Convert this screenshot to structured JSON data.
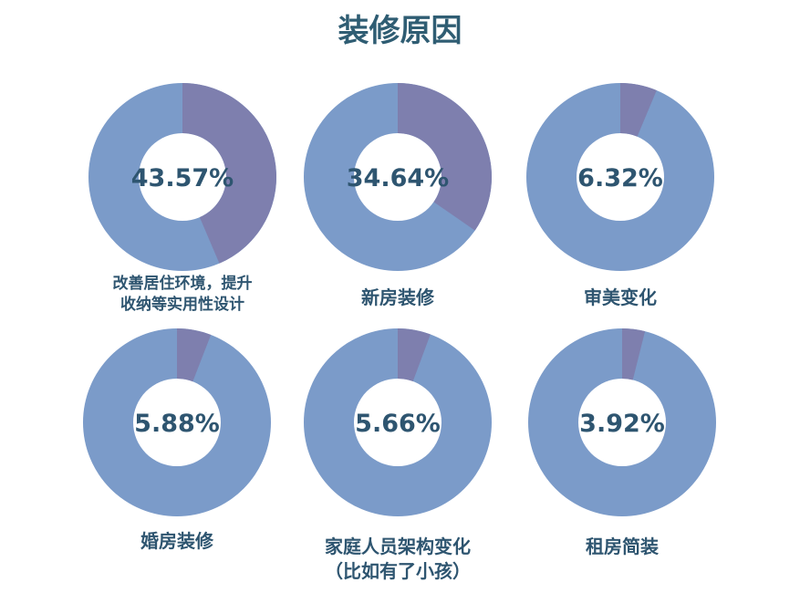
{
  "title": "装修原因",
  "chart_data": [
    {
      "type": "donut",
      "categories": [
        "改善居住环境，提升\n收纳等实用性设计"
      ],
      "values": [
        43.57
      ],
      "value_labels": [
        "43.57%"
      ],
      "color": "#7e7fae",
      "ring_color": "#7b9bc9"
    },
    {
      "type": "donut",
      "categories": [
        "新房装修"
      ],
      "values": [
        34.64
      ],
      "value_labels": [
        "34.64%"
      ],
      "color": "#7e7fae",
      "ring_color": "#7b9bc9"
    },
    {
      "type": "donut",
      "categories": [
        "审美变化"
      ],
      "values": [
        6.32
      ],
      "value_labels": [
        "6.32%"
      ],
      "color": "#7e7fae",
      "ring_color": "#7b9bc9"
    },
    {
      "type": "donut",
      "categories": [
        "婚房装修"
      ],
      "values": [
        5.88
      ],
      "value_labels": [
        "5.88%"
      ],
      "color": "#7e7fae",
      "ring_color": "#7b9bc9"
    },
    {
      "type": "donut",
      "categories": [
        "家庭人员架构变化\n（比如有了小孩）"
      ],
      "values": [
        5.66
      ],
      "value_labels": [
        "5.66%"
      ],
      "color": "#7e7fae",
      "ring_color": "#7b9bc9"
    },
    {
      "type": "donut",
      "categories": [
        "租房简装"
      ],
      "values": [
        3.92
      ],
      "value_labels": [
        "3.92%"
      ],
      "color": "#7e7fae",
      "ring_color": "#7b9bc9"
    }
  ]
}
